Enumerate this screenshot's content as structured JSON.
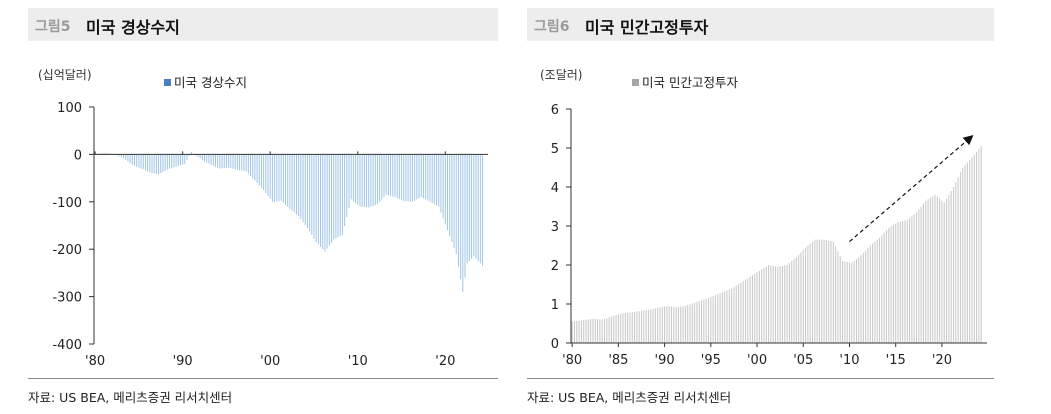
{
  "left": {
    "figure_no": "그림5",
    "title": "미국 경상수지",
    "unit": "(십억달러)",
    "source": "자료: US BEA, 메리츠증권 리서치센터",
    "color": "#9dc3e6",
    "legend_color": "#4a80c0"
  },
  "right": {
    "figure_no": "그림6",
    "title": "미국 민간고정투자",
    "unit": "(조달러)",
    "source": "자료: US BEA, 메리츠증권 리서치센터",
    "color": "#c8c8c8",
    "legend_color": "#a6a6a6"
  },
  "chart_data": [
    {
      "type": "bar",
      "title": "미국 경상수지",
      "ylabel": "(십억달러)",
      "legend": [
        "미국 경상수지"
      ],
      "ylim": [
        -400,
        100
      ],
      "yticks": [
        100,
        0,
        -100,
        -200,
        -300,
        -400
      ],
      "xtick_labels": [
        "'80",
        "'90",
        "'00",
        "'10",
        "'20"
      ],
      "frequency": "quarterly",
      "x_range": [
        "1980Q1",
        "2024Q2"
      ],
      "series": [
        {
          "name": "미국 경상수지",
          "anchors": [
            [
              "1980Q1",
              1
            ],
            [
              "1981Q2",
              3
            ],
            [
              "1982Q2",
              0
            ],
            [
              "1983Q2",
              -8
            ],
            [
              "1984Q2",
              -22
            ],
            [
              "1985Q2",
              -30
            ],
            [
              "1986Q2",
              -38
            ],
            [
              "1987Q2",
              -42
            ],
            [
              "1988Q2",
              -32
            ],
            [
              "1989Q2",
              -26
            ],
            [
              "1990Q2",
              -20
            ],
            [
              "1991Q1",
              5
            ],
            [
              "1991Q3",
              -2
            ],
            [
              "1992Q2",
              -12
            ],
            [
              "1993Q2",
              -22
            ],
            [
              "1994Q2",
              -30
            ],
            [
              "1995Q2",
              -28
            ],
            [
              "1996Q2",
              -32
            ],
            [
              "1997Q2",
              -36
            ],
            [
              "1998Q2",
              -55
            ],
            [
              "1999Q2",
              -75
            ],
            [
              "2000Q2",
              -100
            ],
            [
              "2001Q2",
              -98
            ],
            [
              "2002Q2",
              -115
            ],
            [
              "2003Q2",
              -130
            ],
            [
              "2004Q2",
              -155
            ],
            [
              "2005Q2",
              -185
            ],
            [
              "2006Q2",
              -205
            ],
            [
              "2007Q2",
              -180
            ],
            [
              "2008Q2",
              -170
            ],
            [
              "2009Q2",
              -95
            ],
            [
              "2010Q2",
              -110
            ],
            [
              "2011Q2",
              -112
            ],
            [
              "2012Q2",
              -105
            ],
            [
              "2013Q2",
              -85
            ],
            [
              "2014Q2",
              -90
            ],
            [
              "2015Q2",
              -98
            ],
            [
              "2016Q2",
              -100
            ],
            [
              "2017Q2",
              -90
            ],
            [
              "2018Q2",
              -100
            ],
            [
              "2019Q2",
              -110
            ],
            [
              "2020Q2",
              -160
            ],
            [
              "2021Q2",
              -210
            ],
            [
              "2022Q1",
              -290
            ],
            [
              "2022Q3",
              -230
            ],
            [
              "2023Q2",
              -215
            ],
            [
              "2024Q2",
              -235
            ]
          ]
        }
      ]
    },
    {
      "type": "bar",
      "title": "미국 민간고정투자",
      "ylabel": "(조달러)",
      "legend": [
        "미국 민간고정투자"
      ],
      "ylim": [
        0,
        6
      ],
      "yticks": [
        6,
        5,
        4,
        3,
        2,
        1,
        0
      ],
      "xtick_labels": [
        "'80",
        "'85",
        "'90",
        "'95",
        "'00",
        "'05",
        "'10",
        "'15",
        "'20"
      ],
      "frequency": "quarterly",
      "x_range": [
        "1980Q1",
        "2024Q2"
      ],
      "annotations": [
        "upward trend arrow from 2010 to 2023"
      ],
      "series": [
        {
          "name": "미국 민간고정투자",
          "anchors": [
            [
              "1980Q1",
              0.55
            ],
            [
              "1982Q2",
              0.62
            ],
            [
              "1983Q2",
              0.6
            ],
            [
              "1985Q2",
              0.75
            ],
            [
              "1988Q2",
              0.85
            ],
            [
              "1990Q2",
              0.95
            ],
            [
              "1991Q2",
              0.92
            ],
            [
              "1992Q2",
              0.95
            ],
            [
              "1995Q2",
              1.2
            ],
            [
              "1997Q2",
              1.4
            ],
            [
              "2000Q2",
              1.85
            ],
            [
              "2001Q2",
              2.0
            ],
            [
              "2002Q2",
              1.95
            ],
            [
              "2003Q2",
              2.0
            ],
            [
              "2004Q2",
              2.2
            ],
            [
              "2005Q2",
              2.45
            ],
            [
              "2006Q2",
              2.65
            ],
            [
              "2007Q2",
              2.65
            ],
            [
              "2008Q2",
              2.6
            ],
            [
              "2009Q2",
              2.1
            ],
            [
              "2010Q2",
              2.05
            ],
            [
              "2011Q2",
              2.25
            ],
            [
              "2012Q2",
              2.5
            ],
            [
              "2013Q2",
              2.7
            ],
            [
              "2014Q2",
              2.95
            ],
            [
              "2015Q2",
              3.1
            ],
            [
              "2016Q2",
              3.15
            ],
            [
              "2017Q2",
              3.35
            ],
            [
              "2018Q2",
              3.65
            ],
            [
              "2019Q2",
              3.8
            ],
            [
              "2020Q2",
              3.6
            ],
            [
              "2021Q2",
              4.0
            ],
            [
              "2022Q2",
              4.5
            ],
            [
              "2023Q2",
              4.75
            ],
            [
              "2024Q2",
              5.05
            ]
          ]
        }
      ]
    }
  ]
}
